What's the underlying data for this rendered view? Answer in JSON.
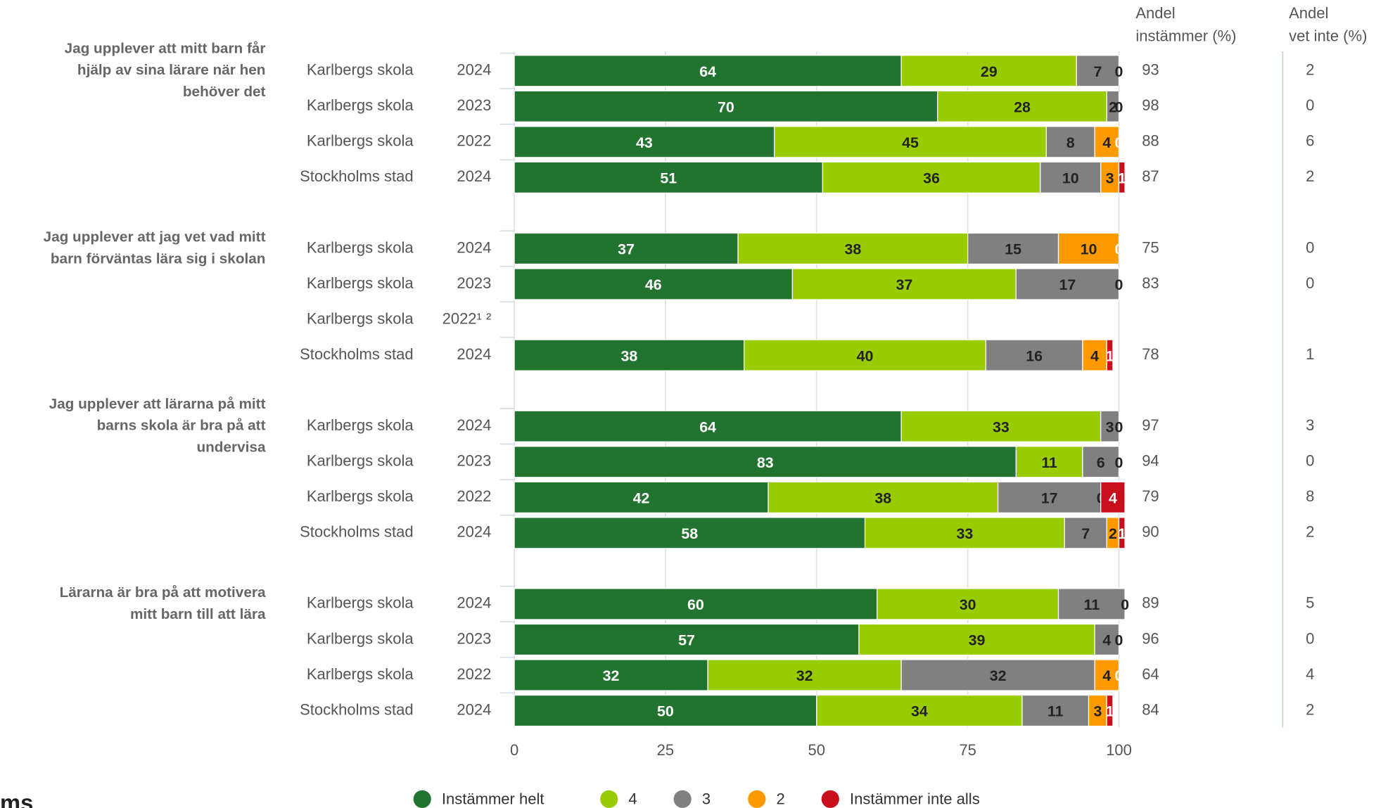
{
  "chart_data": {
    "type": "bar",
    "orientation": "horizontal",
    "stacked": true,
    "xlim": [
      0,
      100
    ],
    "xticks": [
      0,
      25,
      50,
      75,
      100
    ],
    "grid": true,
    "legend": "bottom",
    "logo": "ms",
    "column_headers": [
      [
        "Andel",
        "instämmer (%)"
      ],
      [
        "Andel",
        "vet inte (%)"
      ]
    ],
    "series": [
      {
        "name": "Instämmer helt",
        "color": "#22732f",
        "label_color": "#ffffff"
      },
      {
        "name": "4",
        "color": "#99cc00",
        "label_color": "#222222"
      },
      {
        "name": "3",
        "color": "#808080",
        "label_color": "#222222"
      },
      {
        "name": "2",
        "color": "#ff9900",
        "label_color": "#222222"
      },
      {
        "name": "Instämmer inte alls",
        "color": "#c8101c",
        "label_color": "#ffffff"
      }
    ],
    "groups": [
      {
        "label": [
          "Jag upplever att mitt barn får",
          "hjälp av sina lärare när hen",
          "behöver det"
        ],
        "rows": [
          {
            "entity": "Karlbergs skola",
            "year": "2024",
            "values": [
              64,
              29,
              7,
              0,
              null
            ],
            "andel_instammer": 93,
            "andel_vet_inte": 2
          },
          {
            "entity": "Karlbergs skola",
            "year": "2023",
            "values": [
              70,
              28,
              2,
              0,
              null
            ],
            "andel_instammer": 98,
            "andel_vet_inte": 0
          },
          {
            "entity": "Karlbergs skola",
            "year": "2022",
            "values": [
              43,
              45,
              8,
              4,
              0
            ],
            "andel_instammer": 88,
            "andel_vet_inte": 6
          },
          {
            "entity": "Stockholms stad",
            "year": "2024",
            "values": [
              51,
              36,
              10,
              3,
              1
            ],
            "andel_instammer": 87,
            "andel_vet_inte": 2
          }
        ]
      },
      {
        "label": [
          "Jag upplever att jag vet vad mitt",
          "barn förväntas lära sig i skolan"
        ],
        "rows": [
          {
            "entity": "Karlbergs skola",
            "year": "2024",
            "values": [
              37,
              38,
              15,
              10,
              0
            ],
            "andel_instammer": 75,
            "andel_vet_inte": 0
          },
          {
            "entity": "Karlbergs skola",
            "year": "2023",
            "values": [
              46,
              37,
              17,
              0,
              null
            ],
            "andel_instammer": 83,
            "andel_vet_inte": 0
          },
          {
            "entity": "Karlbergs skola",
            "year": "2022¹ ²",
            "values": [
              null,
              null,
              null,
              null,
              null
            ],
            "andel_instammer": null,
            "andel_vet_inte": null
          },
          {
            "entity": "Stockholms stad",
            "year": "2024",
            "values": [
              38,
              40,
              16,
              4,
              1
            ],
            "andel_instammer": 78,
            "andel_vet_inte": 1
          }
        ]
      },
      {
        "label": [
          "Jag upplever att lärarna på mitt",
          "barns skola är bra på att",
          "undervisa"
        ],
        "rows": [
          {
            "entity": "Karlbergs skola",
            "year": "2024",
            "values": [
              64,
              33,
              3,
              0,
              null
            ],
            "andel_instammer": 97,
            "andel_vet_inte": 3
          },
          {
            "entity": "Karlbergs skola",
            "year": "2023",
            "values": [
              83,
              11,
              6,
              0,
              null
            ],
            "andel_instammer": 94,
            "andel_vet_inte": 0
          },
          {
            "entity": "Karlbergs skola",
            "year": "2022",
            "values": [
              42,
              38,
              17,
              0,
              4
            ],
            "andel_instammer": 79,
            "andel_vet_inte": 8
          },
          {
            "entity": "Stockholms stad",
            "year": "2024",
            "values": [
              58,
              33,
              7,
              2,
              1
            ],
            "andel_instammer": 90,
            "andel_vet_inte": 2
          }
        ]
      },
      {
        "label": [
          "Lärarna är bra på att motivera",
          "mitt barn till att lära"
        ],
        "rows": [
          {
            "entity": "Karlbergs skola",
            "year": "2024",
            "values": [
              60,
              30,
              11,
              0,
              null
            ],
            "andel_instammer": 89,
            "andel_vet_inte": 5
          },
          {
            "entity": "Karlbergs skola",
            "year": "2023",
            "values": [
              57,
              39,
              4,
              0,
              null
            ],
            "andel_instammer": 96,
            "andel_vet_inte": 0
          },
          {
            "entity": "Karlbergs skola",
            "year": "2022",
            "values": [
              32,
              32,
              32,
              4,
              0
            ],
            "andel_instammer": 64,
            "andel_vet_inte": 4
          },
          {
            "entity": "Stockholms stad",
            "year": "2024",
            "values": [
              50,
              34,
              11,
              3,
              1
            ],
            "andel_instammer": 84,
            "andel_vet_inte": 2
          }
        ]
      }
    ]
  }
}
